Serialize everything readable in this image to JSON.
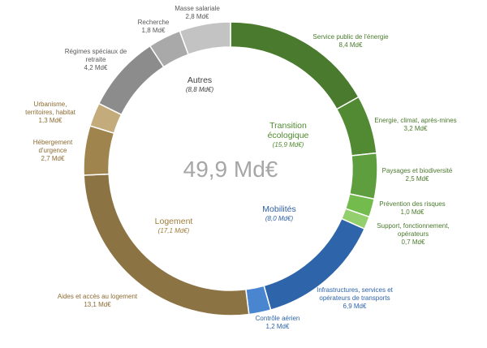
{
  "chart_data": {
    "type": "pie",
    "variant": "donut",
    "total_label": "49,9 Md€",
    "unit": "Md€",
    "segments": [
      {
        "label": "Service public de l'énergie",
        "value": 8.4,
        "value_text": "8,4  Md€",
        "group": "transition",
        "color": "#4a7a2d"
      },
      {
        "label": "Energie, climat, après-mines",
        "value": 3.2,
        "value_text": "3,2  Md€",
        "group": "transition",
        "color": "#528a34"
      },
      {
        "label": "Paysages et biodiversité",
        "value": 2.5,
        "value_text": "2,5  Md€",
        "group": "transition",
        "color": "#5e9e3e"
      },
      {
        "label": "Prévention  des risques",
        "value": 1.0,
        "value_text": "1,0  Md€",
        "group": "transition",
        "color": "#72bb4c"
      },
      {
        "label": "Support,  fonctionnement, opérateurs",
        "value": 0.7,
        "value_text": "0,7  Md€",
        "group": "transition",
        "color": "#94cf6e"
      },
      {
        "label": "Infrastructures,  services et opérateurs  de transports",
        "value": 6.9,
        "value_text": "6,9  Md€",
        "group": "mobilites",
        "color": "#2e64aa"
      },
      {
        "label": "Contrôle  aérien",
        "value": 1.2,
        "value_text": "1,2  Md€",
        "group": "mobilites",
        "color": "#4a86cf"
      },
      {
        "label": "Aides et accès au logement",
        "value": 13.1,
        "value_text": "13,1  Md€",
        "group": "logement",
        "color": "#8c7344"
      },
      {
        "label": "Hébergement d'urgence",
        "value": 2.7,
        "value_text": "2,7  Md€",
        "group": "logement",
        "color": "#a0844d"
      },
      {
        "label": "Urbanisme, territoires, habitat",
        "value": 1.3,
        "value_text": "1,3  Md€",
        "group": "logement",
        "color": "#c4ab7c"
      },
      {
        "label": "Régimes spéciaux de retraite",
        "value": 4.2,
        "value_text": "4,2  Md€",
        "group": "autres",
        "color": "#8c8c8c"
      },
      {
        "label": "Recherche",
        "value": 1.8,
        "value_text": "1,8  Md€",
        "group": "autres",
        "color": "#a9a9a9"
      },
      {
        "label": "Masse salariale",
        "value": 2.8,
        "value_text": "2,8  Md€",
        "group": "autres",
        "color": "#c3c3c3"
      }
    ],
    "groups": {
      "transition": {
        "title_lines": [
          "Transition",
          "écologique"
        ],
        "sub": "(15,9 Md€)",
        "color": "#4e8a2e"
      },
      "mobilites": {
        "title_lines": [
          "Mobilités"
        ],
        "sub": "(8,0 Md€)",
        "color": "#2e5fa3"
      },
      "logement": {
        "title_lines": [
          "Logement"
        ],
        "sub": "(17,1 Md€)",
        "color": "#a07c3c"
      },
      "autres": {
        "title_lines": [
          "Autres"
        ],
        "sub": "(8,8 Md€)",
        "color": "#404040"
      }
    },
    "segment_label_colors": {
      "transition": "#4a7a2d",
      "mobilites": "#2e64aa",
      "logement": "#8c6b33",
      "autres": "#595959"
    }
  }
}
